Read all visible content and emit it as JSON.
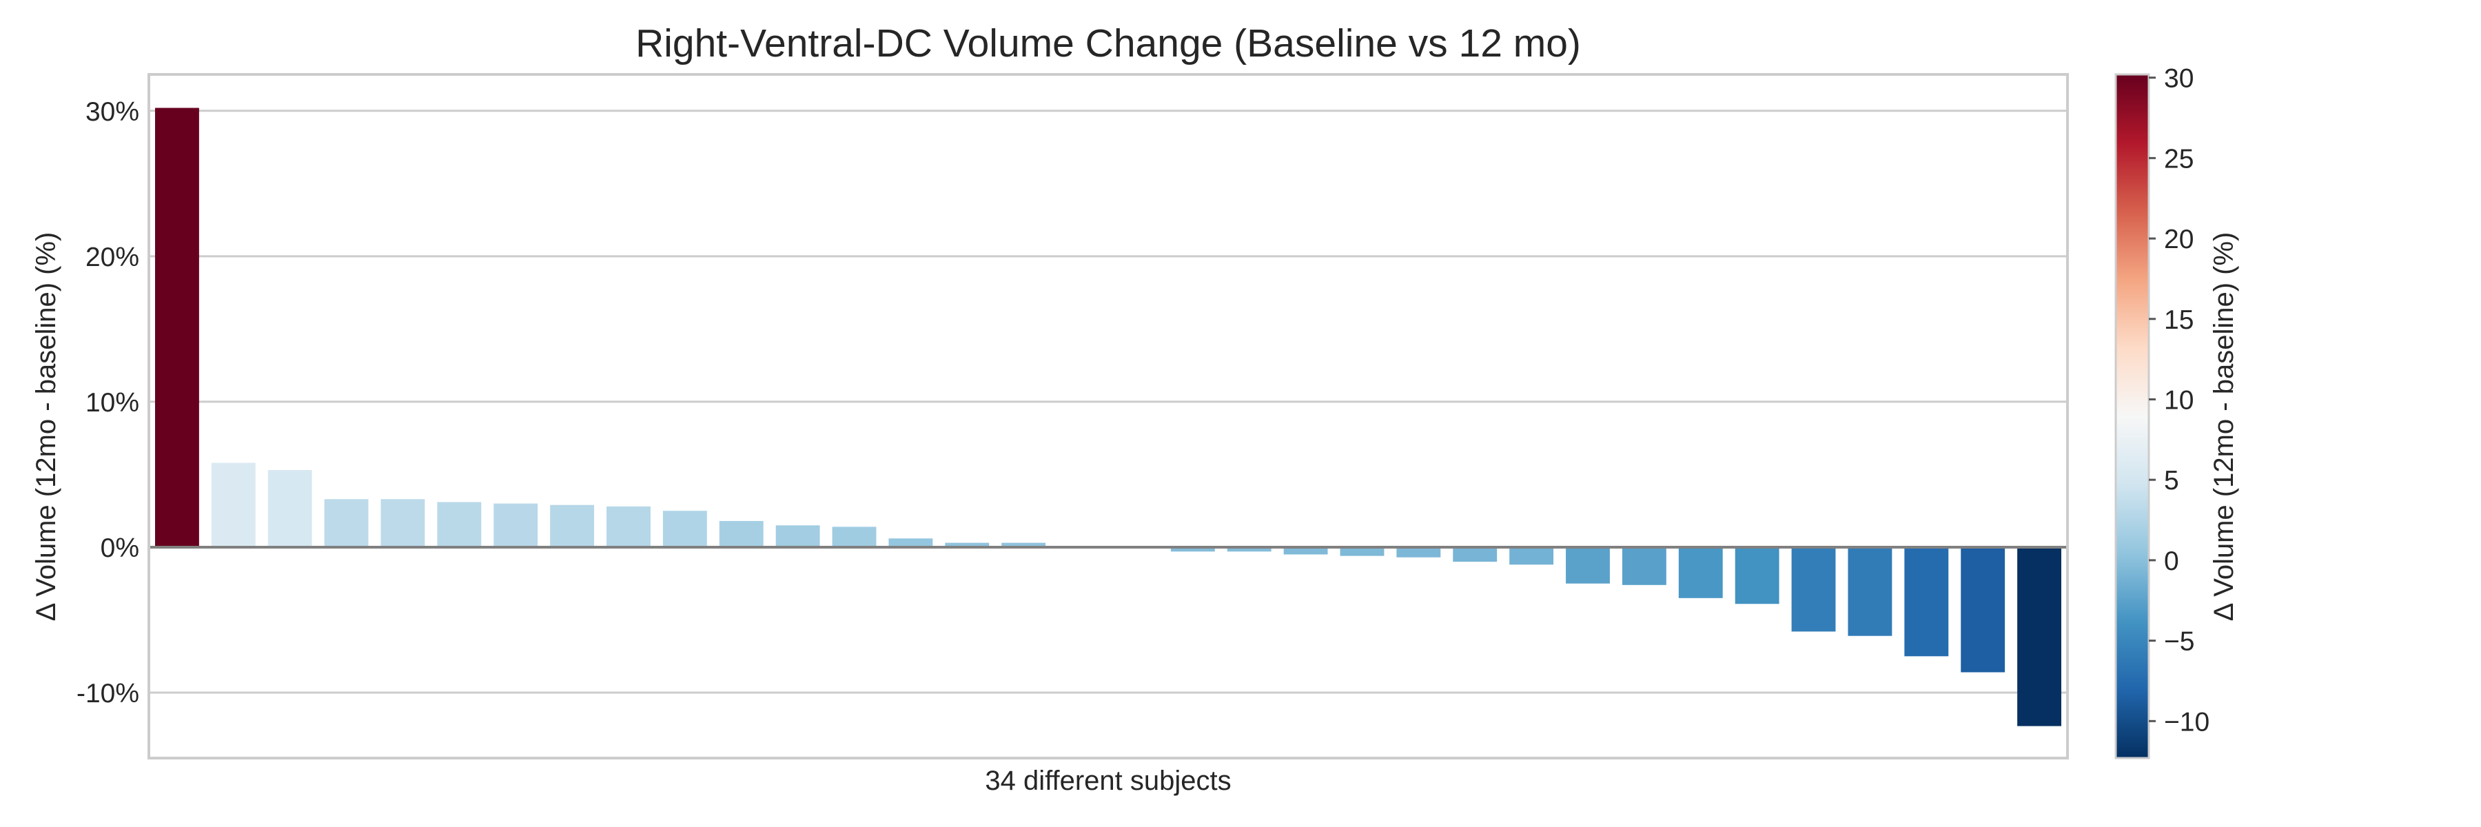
{
  "chart_data": {
    "type": "bar",
    "title": "Right-Ventral-DC Volume Change (Baseline vs 12 mo)",
    "xlabel": "34 different subjects",
    "ylabel": "Δ Volume (12mo - baseline) (%)",
    "ylim": [
      -14.5,
      32.5
    ],
    "yticks": [
      30,
      20,
      10,
      0,
      -10
    ],
    "ytick_labels": [
      "30%",
      "20%",
      "10%",
      "0%",
      "-10%"
    ],
    "grid": true,
    "values": [
      30.2,
      5.8,
      5.3,
      3.3,
      3.3,
      3.1,
      3.0,
      2.9,
      2.8,
      2.5,
      1.8,
      1.5,
      1.4,
      0.6,
      0.3,
      0.3,
      0.0,
      0.0,
      -0.3,
      -0.3,
      -0.5,
      -0.6,
      -0.7,
      -1.0,
      -1.2,
      -2.5,
      -2.6,
      -3.5,
      -3.9,
      -5.8,
      -6.1,
      -7.5,
      -8.6,
      -12.3
    ],
    "colorbar": {
      "label": "Δ Volume (12mo - baseline) (%)",
      "range": [
        -12.3,
        30.2
      ],
      "ticks": [
        30,
        25,
        20,
        15,
        10,
        5,
        0,
        -5,
        -10
      ],
      "tick_labels": [
        "30",
        "25",
        "20",
        "15",
        "10",
        "5",
        "0",
        "−5",
        "−10"
      ],
      "colormap": "RdBu_r",
      "colors": [
        "#053061",
        "#2166ac",
        "#4393c3",
        "#92c5de",
        "#d1e5f0",
        "#f7f7f7",
        "#fddbc7",
        "#f4a582",
        "#d6604d",
        "#b2182b",
        "#67001f"
      ]
    },
    "colors": {
      "grid": "#cccccc",
      "zero_line": "#808080"
    }
  }
}
